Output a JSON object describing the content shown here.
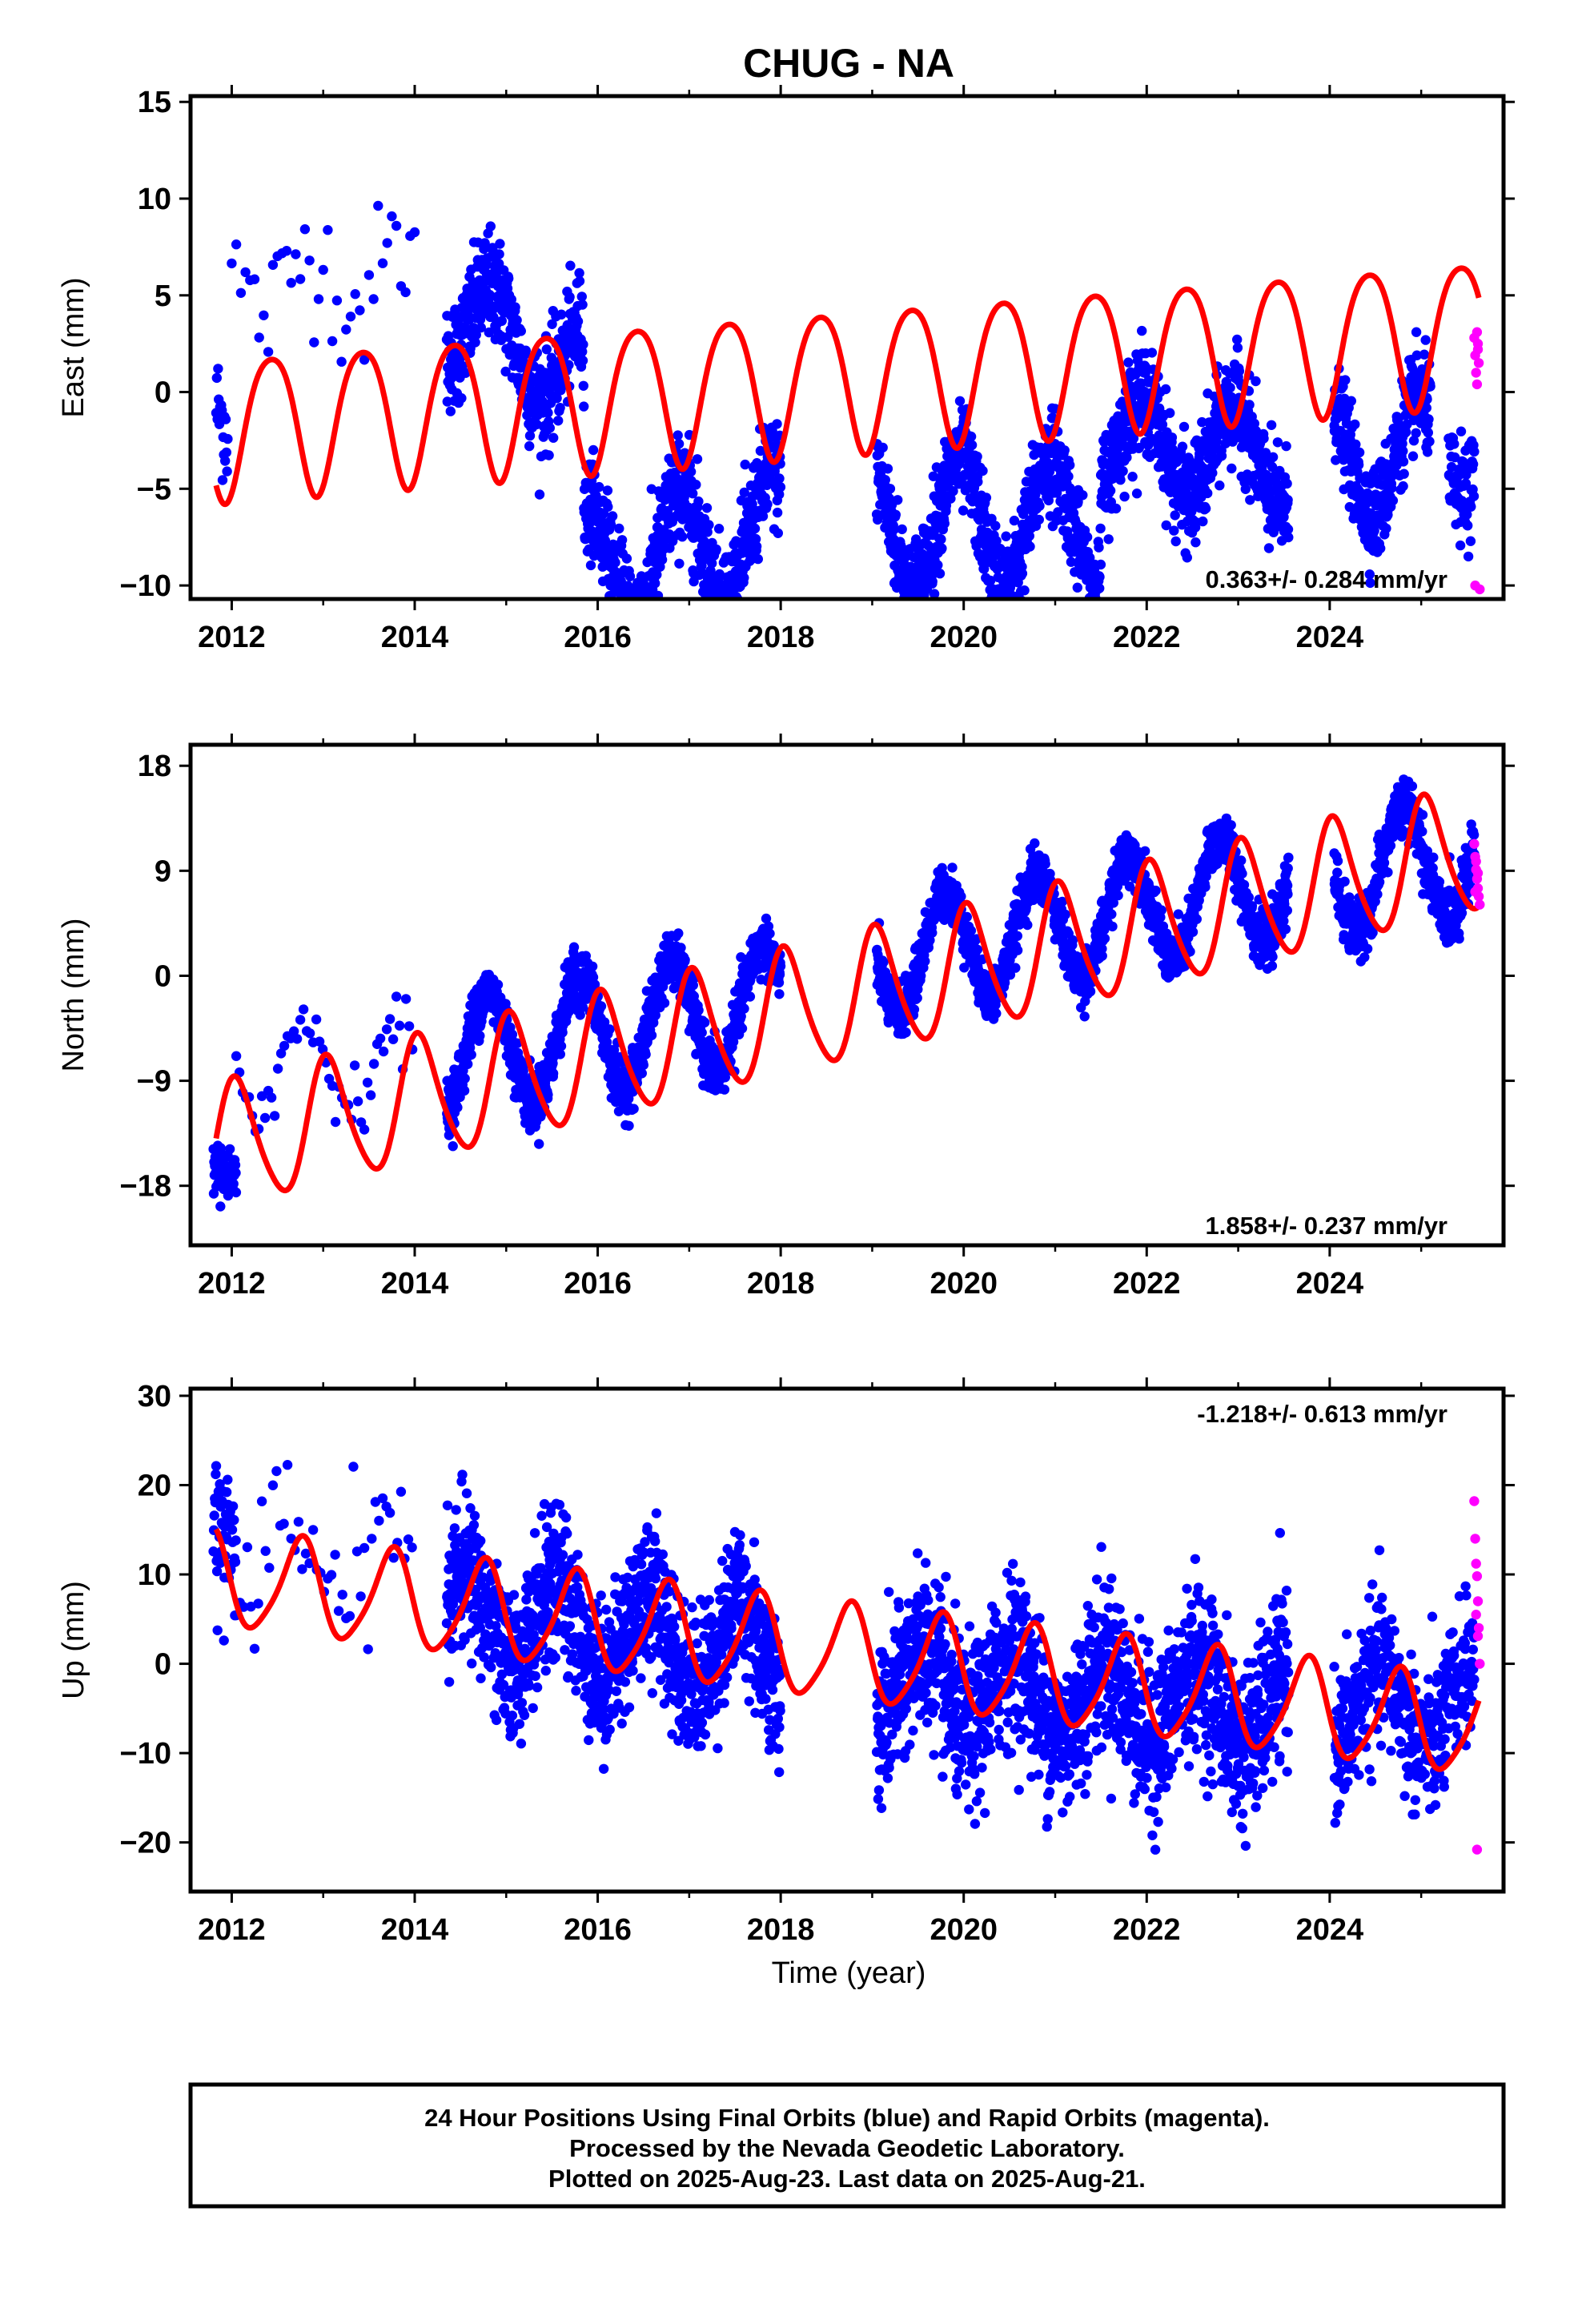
{
  "colors": {
    "final_orbits": "#0000ff",
    "rapid_orbits": "#ff00ff",
    "model": "#ff0000",
    "frame": "#000000"
  },
  "footer": {
    "line1": "24 Hour Positions Using Final Orbits (blue) and Rapid Orbits (magenta).",
    "line2": "Processed by the Nevada Geodetic Laboratory.",
    "line3": "Plotted on 2025-Aug-23. Last data on 2025-Aug-21."
  },
  "chart_data": [
    {
      "type": "scatter",
      "title": "CHUG - NA",
      "ylabel": "East (mm)",
      "xlabel": "",
      "xlim": [
        2011.55,
        2025.9
      ],
      "ylim": [
        -10.7,
        15.3
      ],
      "xticks": [
        2012,
        2014,
        2016,
        2018,
        2020,
        2022,
        2024
      ],
      "yticks": [
        -10,
        -5,
        0,
        5,
        10,
        15
      ],
      "rate_label": "0.363+/- 0.284 mm/yr",
      "rate_position": "bottom-right",
      "series": [
        {
          "kind": "final",
          "color": "#0000ff",
          "segments": [
            {
              "start": 2011.83,
              "end": 2011.96,
              "step": 0.007,
              "offset": 0,
              "trend": -15,
              "amp": 0.7,
              "phase": 0,
              "noise": 1.5
            },
            {
              "start": 2012.0,
              "end": 2014.0,
              "step": 0.05,
              "offset": 5.5,
              "trend": 0.3,
              "amp": 1.6,
              "phase": 0.6,
              "noise": 1.8
            },
            {
              "start": 2014.35,
              "end": 2015.85,
              "step": 0.0035,
              "offset": 4.2,
              "trend": -2.2,
              "amp": 2.4,
              "phase": 0.6,
              "noise": 1.4
            },
            {
              "start": 2015.85,
              "end": 2018.0,
              "step": 0.003,
              "offset": -9.2,
              "trend": 1.0,
              "amp": 3.0,
              "phase": 0.65,
              "noise": 1.4
            },
            {
              "start": 2019.05,
              "end": 2021.5,
              "step": 0.003,
              "offset": -6.8,
              "trend": 0.0,
              "amp": 3.3,
              "phase": 0.7,
              "noise": 1.3
            },
            {
              "start": 2021.5,
              "end": 2023.55,
              "step": 0.003,
              "offset": -2.5,
              "trend": -0.5,
              "amp": 2.5,
              "phase": 0.7,
              "noise": 1.3
            },
            {
              "start": 2024.05,
              "end": 2025.1,
              "step": 0.003,
              "offset": -3.3,
              "trend": 0.0,
              "amp": 3.0,
              "phase": 0.72,
              "noise": 1.2
            },
            {
              "start": 2025.3,
              "end": 2025.58,
              "step": 0.004,
              "offset": -3.0,
              "trend": 0.0,
              "amp": 2.5,
              "phase": 0.72,
              "noise": 1.3
            }
          ]
        },
        {
          "kind": "rapid",
          "color": "#ff00ff",
          "x": [
            2025.58,
            2025.59,
            2025.6,
            2025.61,
            2025.62,
            2025.63,
            2025.64,
            2025.61,
            2025.59,
            2025.62
          ],
          "y": [
            2.8,
            1.9,
            1.0,
            0.4,
            2.2,
            1.5,
            -10.2,
            3.1,
            -10.0,
            2.5
          ]
        },
        {
          "kind": "model",
          "color": "#ff0000",
          "start": 2011.83,
          "end": 2025.63,
          "mean": 0.5,
          "offset_at_2018": 0.55,
          "rate": 0.363,
          "annual_amp": 3.65,
          "annual_phase": 0.18,
          "semi_amp": 0.5,
          "semi_phase": 0.05,
          "jump_year": 2019.05,
          "jump": 0.0
        }
      ]
    },
    {
      "type": "scatter",
      "title": "",
      "ylabel": "North (mm)",
      "xlabel": "",
      "xlim": [
        2011.55,
        2025.9
      ],
      "ylim": [
        -23.1,
        19.8
      ],
      "xticks": [
        2012,
        2014,
        2016,
        2018,
        2020,
        2022,
        2024
      ],
      "yticks": [
        -18,
        -9,
        0,
        9,
        18
      ],
      "rate_label": "1.858+/- 0.237 mm/yr",
      "rate_position": "bottom-right",
      "series": [
        {
          "kind": "final",
          "color": "#0000ff",
          "segments": [
            {
              "start": 2011.8,
              "end": 2012.05,
              "step": 0.004,
              "offset": -18.0,
              "trend": 0,
              "amp": 1.5,
              "phase": 0.55,
              "noise": 1.2
            },
            {
              "start": 2012.05,
              "end": 2014.0,
              "step": 0.035,
              "offset": -7.5,
              "trend": 0,
              "amp": 3.5,
              "phase": 0.55,
              "noise": 1.5
            },
            {
              "start": 2014.35,
              "end": 2018.0,
              "step": 0.0028,
              "offset": -7.0,
              "trend": 1.3,
              "amp": 5.0,
              "phase": 0.55,
              "noise": 1.2
            },
            {
              "start": 2019.05,
              "end": 2023.55,
              "step": 0.0028,
              "offset": 1.3,
              "trend": 1.5,
              "amp": 4.8,
              "phase": 0.55,
              "noise": 1.1
            },
            {
              "start": 2024.05,
              "end": 2025.58,
              "step": 0.003,
              "offset": 8.5,
              "trend": 1.2,
              "amp": 5.0,
              "phase": 0.55,
              "noise": 1.2
            }
          ]
        },
        {
          "kind": "rapid",
          "color": "#ff00ff",
          "x": [
            2025.58,
            2025.59,
            2025.6,
            2025.61,
            2025.62,
            2025.63,
            2025.64,
            2025.6,
            2025.62,
            2025.59
          ],
          "y": [
            11.3,
            10.2,
            9.1,
            8.3,
            7.5,
            6.8,
            6.1,
            9.8,
            8.8,
            7.2
          ]
        },
        {
          "kind": "model",
          "color": "#ff0000",
          "start": 2011.83,
          "end": 2025.63,
          "mean": 0.0,
          "offset_at_2018": -3.3,
          "rate": 1.858,
          "annual_amp": 5.3,
          "annual_phase": 0.8,
          "semi_amp": 0.7,
          "semi_phase": 0.35,
          "jump_year": 2019.05,
          "jump": 0.0
        }
      ]
    },
    {
      "type": "scatter",
      "title": "",
      "ylabel": "Up (mm)",
      "xlabel": "Time (year)",
      "xlim": [
        2011.55,
        2025.9
      ],
      "ylim": [
        -25.5,
        30.8
      ],
      "xticks": [
        2012,
        2014,
        2016,
        2018,
        2020,
        2022,
        2024
      ],
      "yticks": [
        -20,
        -10,
        0,
        10,
        20,
        30
      ],
      "rate_label": "-1.218+/- 0.613 mm/yr",
      "rate_position": "top-right",
      "series": [
        {
          "kind": "final",
          "color": "#0000ff",
          "segments": [
            {
              "start": 2011.8,
              "end": 2012.05,
              "step": 0.005,
              "offset": 17.0,
              "trend": 0,
              "amp": 3.0,
              "phase": 0.3,
              "noise": 4.5
            },
            {
              "start": 2012.05,
              "end": 2014.0,
              "step": 0.04,
              "offset": 11.0,
              "trend": 0,
              "amp": 5.0,
              "phase": 0.3,
              "noise": 5.0
            },
            {
              "start": 2014.35,
              "end": 2018.0,
              "step": 0.003,
              "offset": 5.5,
              "trend": -1.2,
              "amp": 5.0,
              "phase": 0.3,
              "noise": 4.0
            },
            {
              "start": 2019.05,
              "end": 2023.55,
              "step": 0.003,
              "offset": -2.5,
              "trend": -0.6,
              "amp": 4.5,
              "phase": 0.3,
              "noise": 4.5
            },
            {
              "start": 2024.05,
              "end": 2025.58,
              "step": 0.0035,
              "offset": -5.0,
              "trend": 0,
              "amp": 4.5,
              "phase": 0.3,
              "noise": 4.0
            }
          ]
        },
        {
          "kind": "rapid",
          "color": "#ff00ff",
          "x": [
            2025.58,
            2025.59,
            2025.6,
            2025.61,
            2025.62,
            2025.6,
            2025.63,
            2025.64,
            2025.61,
            2025.62
          ],
          "y": [
            18.2,
            14.0,
            11.2,
            9.8,
            7.0,
            5.5,
            4.0,
            0.0,
            -20.8,
            3.1
          ]
        },
        {
          "kind": "model",
          "color": "#ff0000",
          "start": 2011.83,
          "end": 2025.63,
          "mean": 0.0,
          "offset_at_2018": 2.0,
          "rate": -1.218,
          "annual_amp": 5.3,
          "annual_phase": 0.5,
          "semi_amp": 0.9,
          "semi_phase": 0.2,
          "jump_year": 2019.05,
          "jump": 0.0
        }
      ]
    }
  ]
}
